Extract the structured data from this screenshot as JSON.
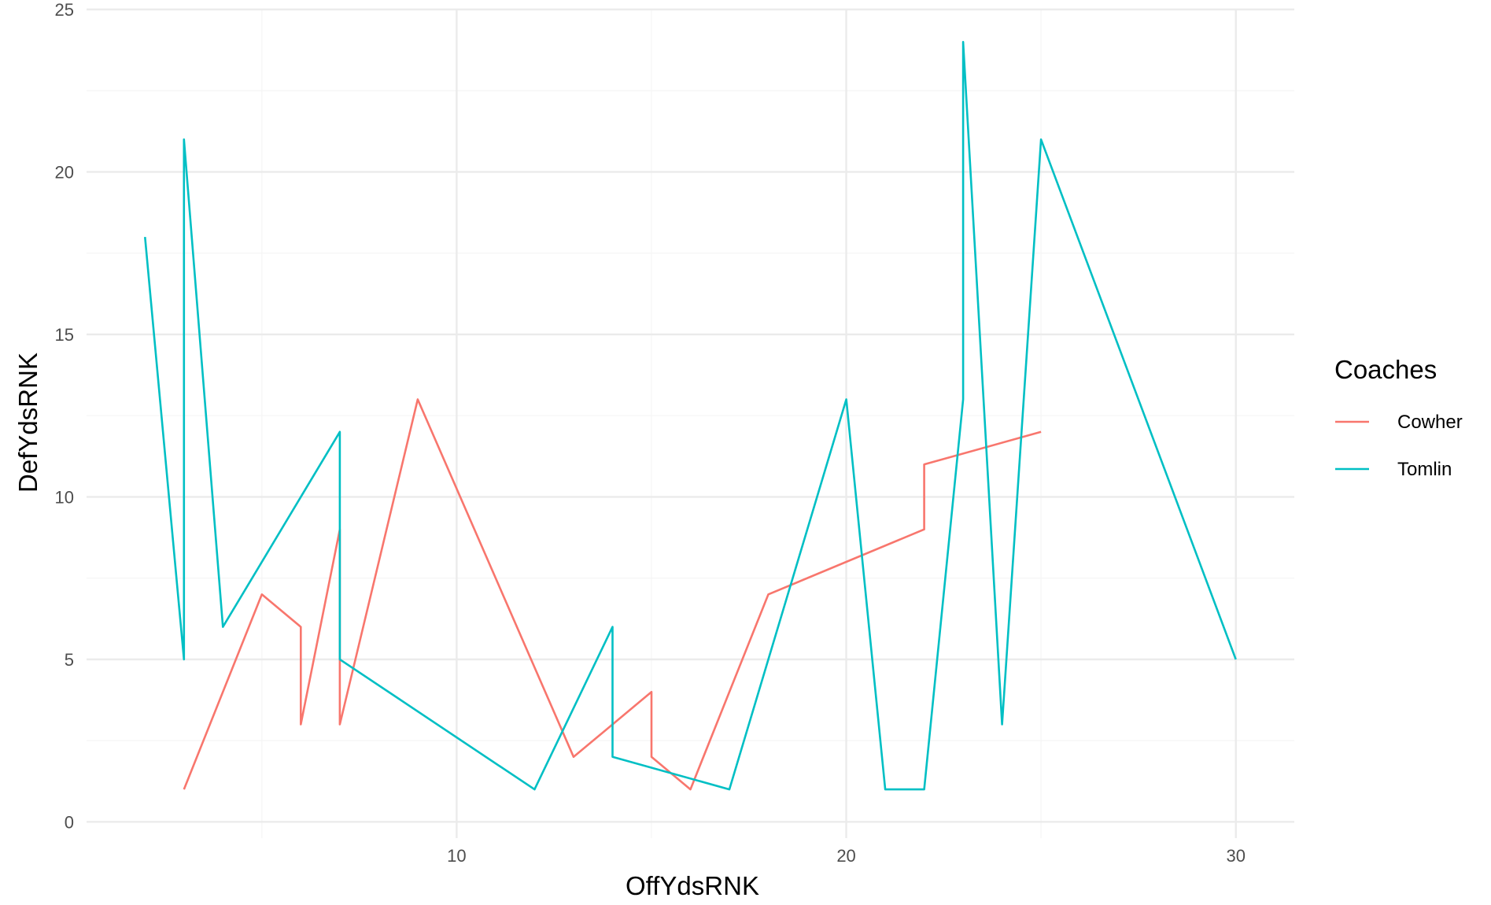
{
  "chart_data": {
    "type": "line",
    "title": "",
    "xlabel": "OffYdsRNK",
    "ylabel": "DefYdsRNK",
    "xlim": [
      0.5,
      31.5
    ],
    "ylim": [
      -0.5,
      25
    ],
    "x_ticks": [
      10,
      20,
      30
    ],
    "y_ticks": [
      0,
      5,
      10,
      15,
      20,
      25
    ],
    "grid": true,
    "legend": {
      "title": "Coaches",
      "position": "right"
    },
    "series": [
      {
        "name": "Cowher",
        "color": "#F8766D",
        "x": [
          3,
          5,
          6,
          6,
          7,
          7,
          9,
          13,
          15,
          15,
          16,
          18,
          22,
          22,
          25
        ],
        "y": [
          1,
          7,
          6,
          3,
          9,
          3,
          13,
          2,
          4,
          2,
          1,
          7,
          9,
          11,
          12
        ]
      },
      {
        "name": "Tomlin",
        "color": "#00BFC4",
        "x": [
          2,
          3,
          3,
          4,
          7,
          7,
          12,
          14,
          14,
          17,
          20,
          21,
          22,
          23,
          23,
          24,
          25,
          30
        ],
        "y": [
          18,
          5,
          21,
          6,
          12,
          5,
          1,
          6,
          2,
          1,
          13,
          1,
          1,
          13,
          24,
          3,
          21,
          5
        ]
      }
    ]
  }
}
